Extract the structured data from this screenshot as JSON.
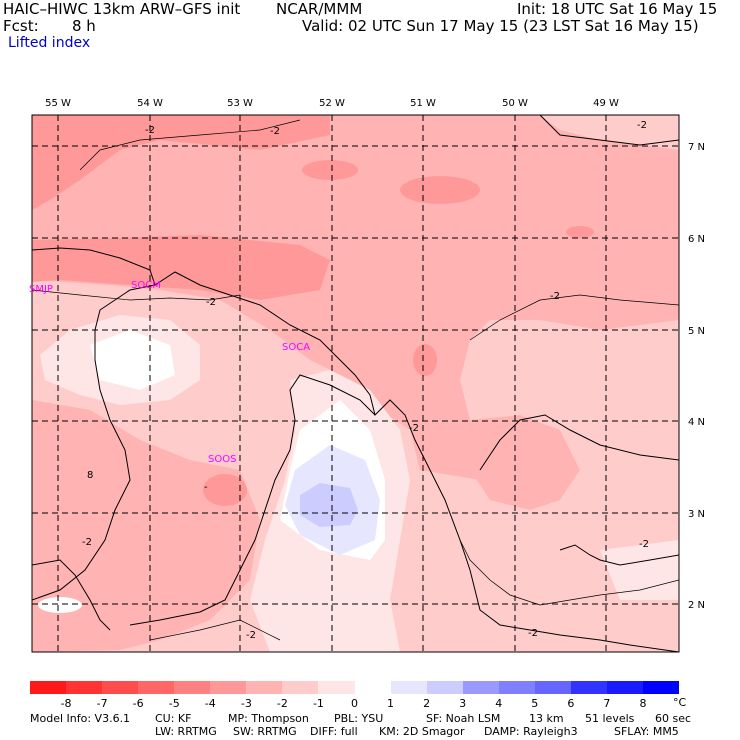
{
  "header": {
    "title_left": "HAIC–HIWC 13km ARW–GFS init",
    "org": "NCAR/MMM",
    "init": "Init: 18 UTC Sat 16 May 15",
    "fcst_label": "Fcst:",
    "fcst_value": "8 h",
    "valid": "Valid: 02 UTC Sun 17 May 15 (23 LST Sat 16 May 15)",
    "field_name": "Lifted index"
  },
  "map": {
    "lon_labels": [
      "55 W",
      "54 W",
      "53 W",
      "52 W",
      "51 W",
      "50 W",
      "49 W"
    ],
    "lat_labels": [
      "7 N",
      "6 N",
      "5 N",
      "4 N",
      "3 N",
      "2 N"
    ],
    "stations": [
      {
        "id": "smjp",
        "label": "SMJP"
      },
      {
        "id": "socm",
        "label": "SOCM"
      },
      {
        "id": "soca",
        "label": "SOCA"
      },
      {
        "id": "soos",
        "label": "SOOS"
      }
    ],
    "contour_labels": [
      "-2",
      "-2",
      "-2",
      "-2",
      "-2",
      "-2",
      "-2",
      "-2",
      "-2",
      "-2"
    ],
    "misc_labels": [
      "8",
      "-"
    ]
  },
  "colorbar": {
    "ticks": [
      "-8",
      "-7",
      "-6",
      "-5",
      "-4",
      "-3",
      "-2",
      "-1",
      "0",
      "1",
      "2",
      "3",
      "4",
      "5",
      "6",
      "7",
      "8"
    ],
    "unit": "°C",
    "colors": [
      "#ff1a1a",
      "#ff3333",
      "#ff4d4d",
      "#ff6666",
      "#ff8080",
      "#ff9999",
      "#ffb3b3",
      "#ffcccc",
      "#ffe6e6",
      "#ffffff",
      "#e6e6ff",
      "#ccccff",
      "#9999ff",
      "#8080ff",
      "#6666ff",
      "#3333ff",
      "#1a1aff",
      "#0000ff"
    ]
  },
  "footer": {
    "line1": [
      "Model Info: V3.6.1",
      "CU: KF",
      "MP: Thompson",
      "PBL: YSU",
      "SF: Noah LSM",
      "13 km",
      "51 levels",
      "60 sec"
    ],
    "line2": [
      "LW: RRTMG",
      "SW: RRTMG",
      "DIFF: full",
      "KM: 2D Smagor",
      "DAMP: Rayleigh3",
      "SFLAY: MM5"
    ]
  }
}
